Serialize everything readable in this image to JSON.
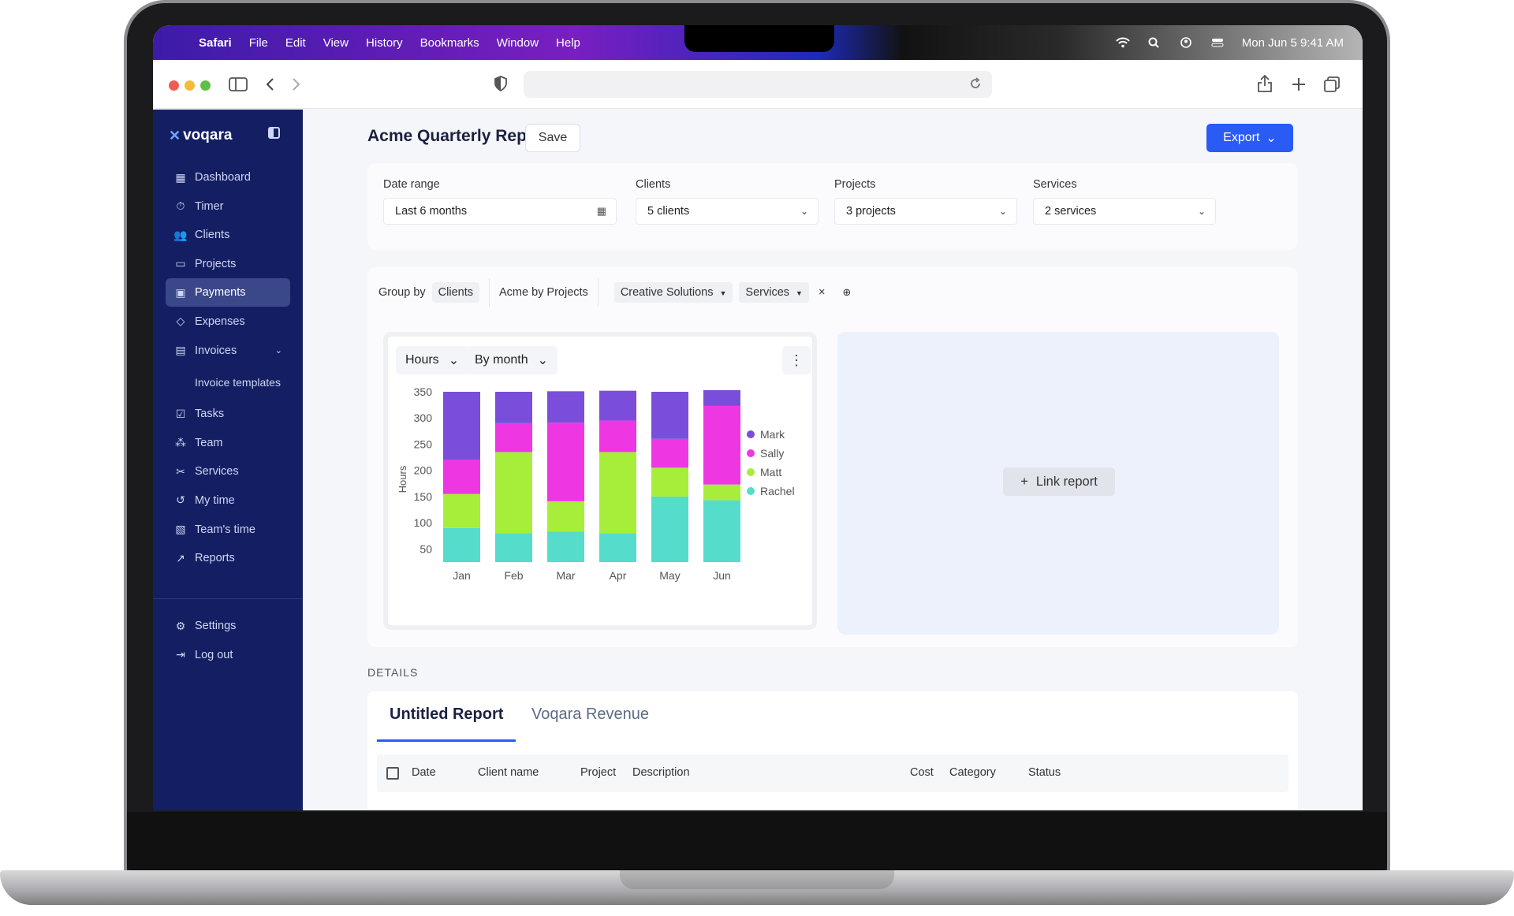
{
  "menubar": {
    "app": "Safari",
    "items": [
      "File",
      "Edit",
      "View",
      "History",
      "Bookmarks",
      "Window",
      "Help"
    ],
    "clock": "Mon Jun 5  9:41 AM"
  },
  "sidebar": {
    "brand": "voqara",
    "items": [
      {
        "label": "Dashboard",
        "icon": "dashboard-icon"
      },
      {
        "label": "Timer",
        "icon": "timer-icon"
      },
      {
        "label": "Clients",
        "icon": "clients-icon"
      },
      {
        "label": "Projects",
        "icon": "folder-icon"
      },
      {
        "label": "Payments",
        "icon": "payments-icon",
        "active": true
      },
      {
        "label": "Expenses",
        "icon": "tag-icon"
      },
      {
        "label": "Invoices",
        "icon": "invoice-icon"
      },
      {
        "label": "Invoice templates"
      },
      {
        "label": "Tasks",
        "icon": "tasks-icon"
      },
      {
        "label": "Team",
        "icon": "team-icon"
      },
      {
        "label": "Services",
        "icon": "services-icon"
      },
      {
        "label": "My time",
        "icon": "history-icon"
      },
      {
        "label": "Team's time",
        "icon": "team-time-icon"
      },
      {
        "label": "Reports",
        "icon": "reports-icon"
      }
    ],
    "bottom": [
      {
        "label": "Settings",
        "icon": "gear-icon"
      },
      {
        "label": "Log out",
        "icon": "logout-icon"
      }
    ]
  },
  "header": {
    "title": "Acme Quarterly Report",
    "save_label": "Save",
    "export_label": "Export"
  },
  "filters": {
    "date_range": {
      "label": "Date range",
      "value": "Last 6 months"
    },
    "clients": {
      "label": "Clients",
      "value": "5 clients"
    },
    "projects": {
      "label": "Projects",
      "value": "3 projects"
    },
    "services": {
      "label": "Services",
      "value": "2 services"
    }
  },
  "groupby": {
    "label": "Group by",
    "value": "Clients",
    "acme": "Acme by Projects",
    "creative": "Creative Solutions",
    "services": "Services",
    "close": "×"
  },
  "chart_controls": {
    "metric": "Hours",
    "period": "By month"
  },
  "link_report_label": "Link report",
  "details": {
    "label": "DETAILS",
    "tabs": [
      "Untitled Report",
      "Voqara Revenue"
    ],
    "columns": [
      "Date",
      "Client name",
      "Project",
      "Description",
      "Cost",
      "Category",
      "Status"
    ]
  },
  "colors": {
    "Mark": "#7b4ddb",
    "Sally": "#ee37e3",
    "Matt": "#a7ee3a",
    "Rachel": "#55dccb",
    "accent": "#2a5bf5",
    "sidebar": "#141f63"
  },
  "chart_data": {
    "type": "bar",
    "stacked": true,
    "categories": [
      "Jan",
      "Feb",
      "Mar",
      "Apr",
      "May",
      "Jun"
    ],
    "series": [
      {
        "name": "Rachel",
        "values": [
          65,
          55,
          58,
          55,
          125,
          118
        ]
      },
      {
        "name": "Matt",
        "values": [
          65,
          155,
          58,
          155,
          55,
          30
        ]
      },
      {
        "name": "Sally",
        "values": [
          65,
          55,
          150,
          60,
          55,
          150
        ]
      },
      {
        "name": "Mark",
        "values": [
          130,
          60,
          60,
          57,
          90,
          30
        ]
      }
    ],
    "ylabel": "Hours",
    "yticks": [
      50,
      100,
      150,
      200,
      250,
      300,
      350
    ],
    "ylim": [
      25,
      350
    ],
    "legend": "right"
  }
}
